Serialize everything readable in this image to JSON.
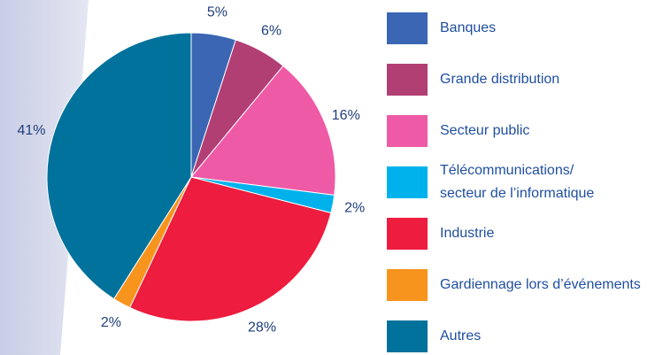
{
  "chart_data": {
    "type": "pie",
    "categories": [
      "Banques",
      "Grande distribution",
      "Secteur public",
      "Télécommunications/\nsecteur de l’informatique",
      "Industrie",
      "Gardiennage lors d’événements",
      "Autres"
    ],
    "values": [
      5,
      6,
      16,
      2,
      28,
      2,
      41
    ],
    "value_labels": [
      "5%",
      "6%",
      "16%",
      "2%",
      "28%",
      "2%",
      "41%"
    ],
    "colors": [
      "#3a66b4",
      "#b23f74",
      "#ee5aa6",
      "#00b2ec",
      "#ee1c3e",
      "#f7941d",
      "#00729c"
    ]
  }
}
